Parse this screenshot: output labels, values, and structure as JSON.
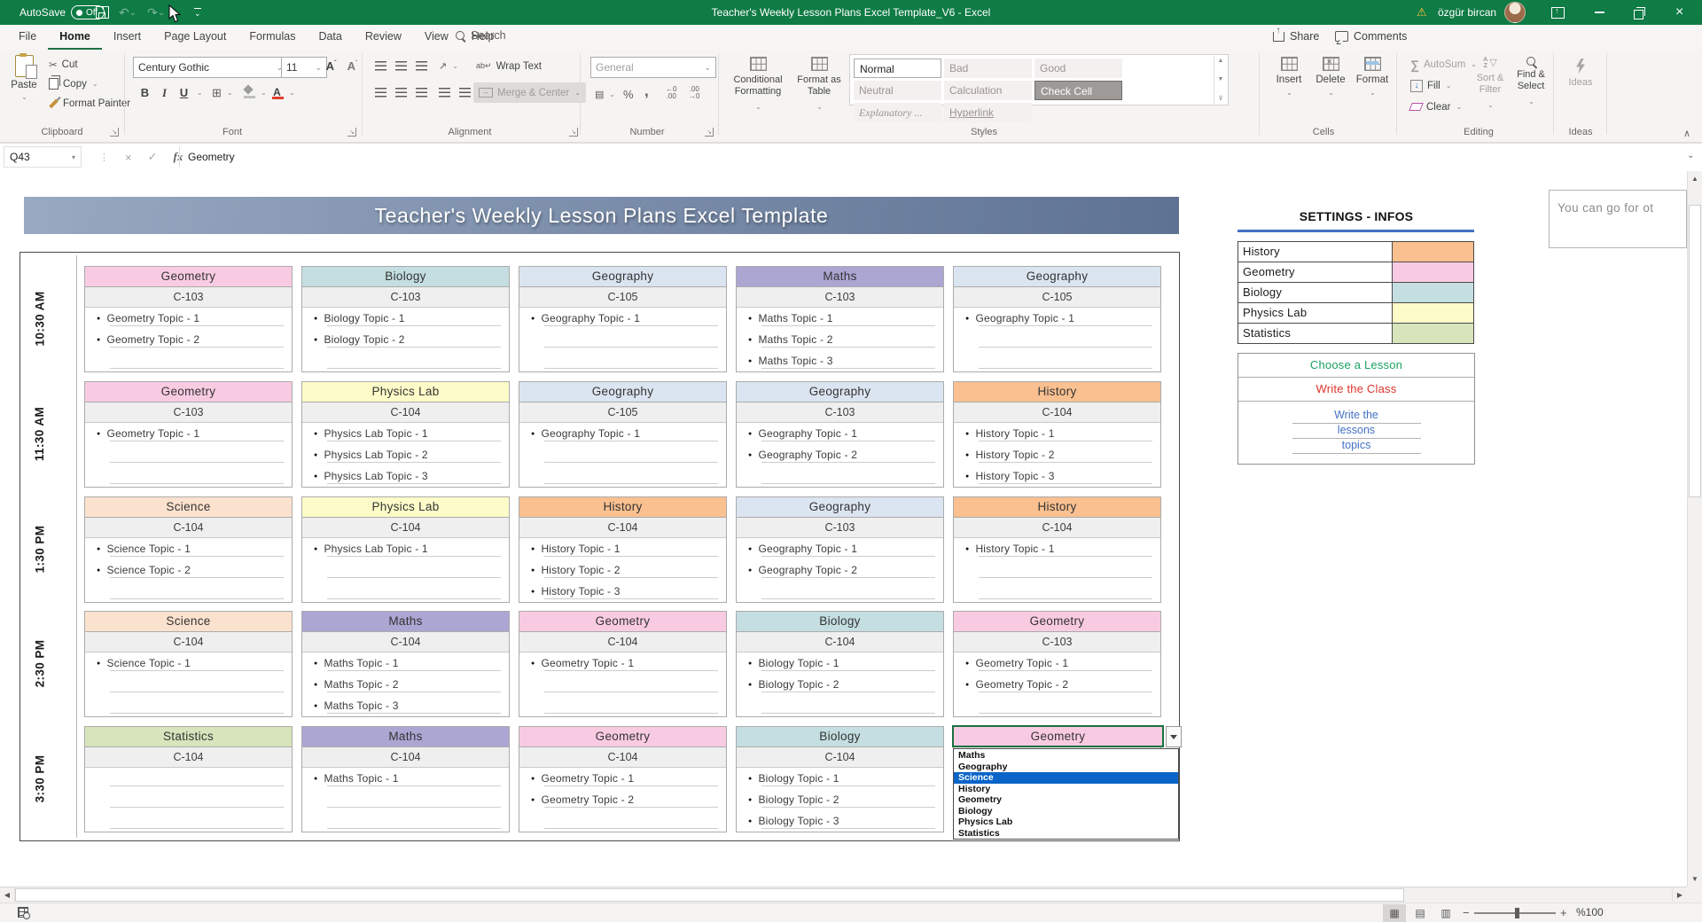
{
  "titlebar": {
    "autosave_label": "AutoSave",
    "autosave_state": "Off",
    "title": "Teacher's Weekly Lesson Plans Excel Template_V6 - Excel",
    "user_name": "özgür bircan"
  },
  "ribbon_tabs": {
    "items": [
      "File",
      "Home",
      "Insert",
      "Page Layout",
      "Formulas",
      "Data",
      "Review",
      "View",
      "Help"
    ],
    "active": "Home",
    "search_label": "Search",
    "share_label": "Share",
    "comments_label": "Comments"
  },
  "ribbon": {
    "clipboard": {
      "group_label": "Clipboard",
      "paste_label": "Paste",
      "cut_label": "Cut",
      "copy_label": "Copy",
      "format_painter_label": "Format Painter"
    },
    "font": {
      "group_label": "Font",
      "font_name": "Century Gothic",
      "font_size": "11",
      "bold": "B",
      "italic": "I",
      "underline": "U"
    },
    "alignment": {
      "group_label": "Alignment",
      "wrap_text_label": "Wrap Text",
      "merge_center_label": "Merge & Center"
    },
    "number": {
      "group_label": "Number",
      "format_value": "General",
      "percent": "%",
      "comma": ","
    },
    "styles": {
      "group_label": "Styles",
      "conditional_label": "Conditional Formatting",
      "format_table_label": "Format as Table",
      "cell_styles": [
        "Normal",
        "Bad",
        "Good",
        "Neutral",
        "Calculation",
        "Check Cell",
        "Explanatory ...",
        "Hyperlink"
      ],
      "selected_style": "Check Cell"
    },
    "cells": {
      "group_label": "Cells",
      "insert_label": "Insert",
      "delete_label": "Delete",
      "format_label": "Format"
    },
    "editing": {
      "group_label": "Editing",
      "autosum_label": "AutoSum",
      "fill_label": "Fill",
      "clear_label": "Clear",
      "sort_label": "Sort & Filter",
      "find_label": "Find & Select"
    },
    "ideas": {
      "group_label": "Ideas",
      "ideas_label": "Ideas"
    }
  },
  "formula_bar": {
    "cell_ref": "Q43",
    "value": "Geometry",
    "fx_label": "fx"
  },
  "sheet": {
    "banner_title": "Teacher's Weekly Lesson Plans Excel Template",
    "note_text": "You can go for ot",
    "settings": {
      "title": "SETTINGS - INFOS",
      "legend": [
        {
          "name": "History",
          "color": "#FAC090"
        },
        {
          "name": "Geometry",
          "color": "#F9CBE3"
        },
        {
          "name": "Biology",
          "color": "#C4DEE1"
        },
        {
          "name": "Physics Lab",
          "color": "#FDFCC8"
        },
        {
          "name": "Statistics",
          "color": "#D7E4BC"
        }
      ],
      "instructions": [
        {
          "text": "Choose a Lesson",
          "color": "#1AA260"
        },
        {
          "text": "Write the Class",
          "color": "#E0332C"
        }
      ],
      "lesson_lines": {
        "color": "#4472C4",
        "lines": [
          "Write the",
          "lessons",
          "topics"
        ]
      }
    },
    "subject_colors": {
      "Geometry": "#F9CBE3",
      "Biology": "#C4DEE1",
      "Geography": "#DBE5F1",
      "Maths": "#ACA6D3",
      "History": "#FAC090",
      "Physics Lab": "#FDFCC8",
      "Science": "#FBE2CE",
      "Statistics": "#D7E4BC"
    },
    "rows": [
      {
        "time": "10:30 AM",
        "cards": [
          {
            "subject": "Geometry",
            "class": "C-103",
            "topics": [
              "Geometry Topic - 1",
              "Geometry Topic - 2",
              ""
            ]
          },
          {
            "subject": "Biology",
            "class": "C-103",
            "topics": [
              "Biology Topic - 1",
              "Biology Topic - 2",
              ""
            ]
          },
          {
            "subject": "Geography",
            "class": "C-105",
            "topics": [
              "Geography Topic - 1",
              "",
              ""
            ]
          },
          {
            "subject": "Maths",
            "class": "C-103",
            "topics": [
              "Maths Topic - 1",
              "Maths Topic - 2",
              "Maths Topic - 3"
            ]
          },
          {
            "subject": "Geography",
            "class": "C-105",
            "topics": [
              "Geography Topic - 1",
              "",
              ""
            ]
          }
        ]
      },
      {
        "time": "11:30 AM",
        "cards": [
          {
            "subject": "Geometry",
            "class": "C-103",
            "topics": [
              "Geometry Topic - 1",
              "",
              ""
            ]
          },
          {
            "subject": "Physics Lab",
            "class": "C-104",
            "topics": [
              "Physics Lab Topic - 1",
              "Physics Lab Topic - 2",
              "Physics Lab Topic - 3"
            ]
          },
          {
            "subject": "Geography",
            "class": "C-105",
            "topics": [
              "Geography Topic - 1",
              "",
              ""
            ]
          },
          {
            "subject": "Geography",
            "class": "C-103",
            "topics": [
              "Geography Topic - 1",
              "Geography Topic - 2",
              ""
            ]
          },
          {
            "subject": "History",
            "class": "C-104",
            "topics": [
              "History Topic - 1",
              "History Topic - 2",
              "History Topic - 3"
            ]
          }
        ]
      },
      {
        "time": "1:30 PM",
        "cards": [
          {
            "subject": "Science",
            "class": "C-104",
            "topics": [
              "Science Topic - 1",
              "Science Topic - 2",
              ""
            ]
          },
          {
            "subject": "Physics Lab",
            "class": "C-104",
            "topics": [
              "Physics Lab Topic - 1",
              "",
              ""
            ]
          },
          {
            "subject": "History",
            "class": "C-104",
            "topics": [
              "History Topic - 1",
              "History Topic - 2",
              "History Topic - 3"
            ]
          },
          {
            "subject": "Geography",
            "class": "C-103",
            "topics": [
              "Geography Topic - 1",
              "Geography Topic - 2",
              ""
            ]
          },
          {
            "subject": "History",
            "class": "C-104",
            "topics": [
              "History Topic - 1",
              "",
              ""
            ]
          }
        ]
      },
      {
        "time": "2:30 PM",
        "cards": [
          {
            "subject": "Science",
            "class": "C-104",
            "topics": [
              "Science Topic - 1",
              "",
              ""
            ]
          },
          {
            "subject": "Maths",
            "class": "C-104",
            "topics": [
              "Maths Topic - 1",
              "Maths Topic - 2",
              "Maths Topic - 3"
            ]
          },
          {
            "subject": "Geometry",
            "class": "C-104",
            "topics": [
              "Geometry Topic - 1",
              "",
              ""
            ]
          },
          {
            "subject": "Biology",
            "class": "C-104",
            "topics": [
              "Biology Topic - 1",
              "Biology Topic - 2",
              ""
            ]
          },
          {
            "subject": "Geometry",
            "class": "C-103",
            "topics": [
              "Geometry Topic - 1",
              "Geometry Topic - 2",
              ""
            ]
          }
        ]
      },
      {
        "time": "3:30 PM",
        "cards": [
          {
            "subject": "Statistics",
            "class": "C-104",
            "topics": [
              "",
              "",
              ""
            ]
          },
          {
            "subject": "Maths",
            "class": "C-104",
            "topics": [
              "Maths Topic - 1",
              "",
              ""
            ]
          },
          {
            "subject": "Geometry",
            "class": "C-104",
            "topics": [
              "Geometry Topic - 1",
              "Geometry Topic - 2",
              ""
            ]
          },
          {
            "subject": "Biology",
            "class": "C-104",
            "topics": [
              "Biology Topic - 1",
              "Biology Topic - 2",
              "Biology Topic - 3"
            ]
          },
          {
            "subject": "Geometry",
            "class": "",
            "topics": [
              "",
              "",
              ""
            ],
            "dropdown_open": true
          }
        ]
      }
    ],
    "dropdown": {
      "selected": "Geometry",
      "items": [
        "Maths",
        "Geography",
        "Science",
        "History",
        "Geometry",
        "Biology",
        "Physics Lab",
        "Statistics"
      ],
      "highlighted": "Science",
      "highlight_color": "#0A64C8"
    }
  },
  "status_bar": {
    "zoom_label": "%100"
  },
  "colors": {
    "titlebar_green": "#0F7B45",
    "accent_green": "#1E7145",
    "banner_from": "#98A9C1",
    "banner_to": "#5E7293",
    "settings_underline": "#4472C4"
  }
}
